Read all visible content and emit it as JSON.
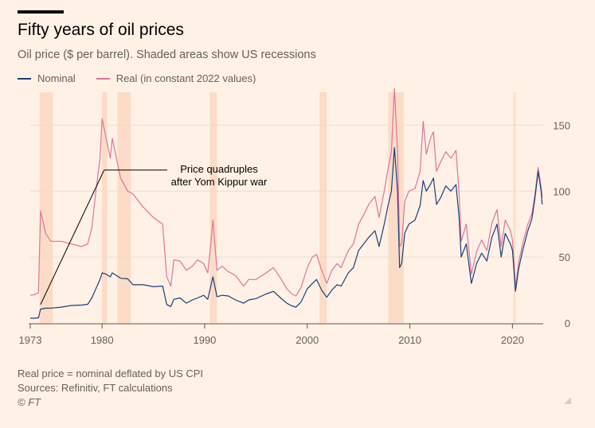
{
  "header": {
    "title": "Fifty years of oil prices",
    "subtitle": "Oil price ($ per barrel). Shaded areas show US recessions"
  },
  "colors": {
    "background": "#fff1e5",
    "nominal": "#1a3f7c",
    "real": "#e0739b",
    "recession": "#fcdcc6",
    "grid": "#e9ddd2",
    "axis": "#66605c"
  },
  "chart_data": {
    "type": "line",
    "title": "Fifty years of oil prices",
    "subtitle": "Oil price ($ per barrel). Shaded areas show US recessions",
    "xlabel": "",
    "ylabel": "",
    "xlim": [
      1973.0,
      2023.0
    ],
    "ylim": [
      0,
      175
    ],
    "x_ticks": [
      1973,
      1980,
      1990,
      2000,
      2010,
      2020
    ],
    "x_tick_labels": [
      "1973",
      "1980",
      "1990",
      "2000",
      "2010",
      "2020"
    ],
    "y_ticks": [
      0,
      50,
      100,
      150
    ],
    "y_tick_labels": [
      "0",
      "50",
      "100",
      "150"
    ],
    "grid": true,
    "legend": {
      "position": "top-left",
      "entries": [
        "Nominal",
        "Real (in constant 2022 values)"
      ]
    },
    "recessions": [
      {
        "start": 1973.9,
        "end": 1975.2
      },
      {
        "start": 1980.0,
        "end": 1980.5
      },
      {
        "start": 1981.5,
        "end": 1982.8
      },
      {
        "start": 1990.5,
        "end": 1991.2
      },
      {
        "start": 2001.2,
        "end": 2001.9
      },
      {
        "start": 2007.9,
        "end": 2009.4
      },
      {
        "start": 2020.1,
        "end": 2020.3
      }
    ],
    "annotation": {
      "text_line1": "Price quadruples",
      "text_line2": "after Yom Kippur war",
      "target_from": [
        1974.0,
        14
      ],
      "target_to": [
        1980.2,
        116
      ]
    },
    "series": [
      {
        "name": "Nominal",
        "x": [
          1973.0,
          1973.4,
          1973.8,
          1974.0,
          1974.5,
          1975.0,
          1976.0,
          1977.0,
          1978.0,
          1978.6,
          1979.0,
          1979.4,
          1979.8,
          1980.0,
          1980.4,
          1980.8,
          1981.0,
          1981.4,
          1981.8,
          1982.5,
          1983.0,
          1984.0,
          1985.0,
          1985.9,
          1986.3,
          1986.7,
          1987.0,
          1987.6,
          1988.2,
          1988.8,
          1989.3,
          1989.9,
          1990.3,
          1990.6,
          1990.8,
          1991.2,
          1991.7,
          1992.3,
          1993.0,
          1993.8,
          1994.3,
          1995.0,
          1996.0,
          1996.7,
          1997.4,
          1998.0,
          1998.5,
          1998.9,
          1999.4,
          2000.0,
          2000.5,
          2000.9,
          2001.4,
          2001.9,
          2002.4,
          2002.9,
          2003.3,
          2004.0,
          2004.5,
          2005.0,
          2005.5,
          2006.0,
          2006.6,
          2007.0,
          2007.5,
          2007.9,
          2008.2,
          2008.5,
          2008.8,
          2009.0,
          2009.2,
          2009.5,
          2009.9,
          2010.5,
          2011.0,
          2011.3,
          2011.6,
          2012.0,
          2012.3,
          2012.6,
          2013.0,
          2013.5,
          2014.0,
          2014.5,
          2014.8,
          2015.0,
          2015.5,
          2016.0,
          2016.5,
          2017.0,
          2017.5,
          2018.0,
          2018.5,
          2018.9,
          2019.3,
          2019.8,
          2020.0,
          2020.3,
          2020.6,
          2021.0,
          2021.5,
          2021.9,
          2022.2,
          2022.5,
          2022.8,
          2022.9
        ],
        "values": [
          3.6,
          3.6,
          3.9,
          10.5,
          11.2,
          11.3,
          12.0,
          13.3,
          13.6,
          14.2,
          19.0,
          26.0,
          33.0,
          38.0,
          37.0,
          35.0,
          38.0,
          36.0,
          34.0,
          33.5,
          29.0,
          29.0,
          27.5,
          28.0,
          14.0,
          12.5,
          18.0,
          19.0,
          15.0,
          17.5,
          19.0,
          21.0,
          18.0,
          28.0,
          35.0,
          20.0,
          21.0,
          20.5,
          17.5,
          15.0,
          17.5,
          18.5,
          22.0,
          24.0,
          19.0,
          15.0,
          13.0,
          12.0,
          16.0,
          26.0,
          30.0,
          33.0,
          25.0,
          19.5,
          25.0,
          29.0,
          28.0,
          38.0,
          42.0,
          55.0,
          60.0,
          65.0,
          70.0,
          58.0,
          75.0,
          90.0,
          100.0,
          133.0,
          100.0,
          42.0,
          45.0,
          68.0,
          75.0,
          78.0,
          89.0,
          108.0,
          100.0,
          105.0,
          110.0,
          90.0,
          95.0,
          104.0,
          100.0,
          105.0,
          80.0,
          50.0,
          60.0,
          30.0,
          45.0,
          53.0,
          47.0,
          65.0,
          75.0,
          50.0,
          68.0,
          60.0,
          55.0,
          24.0,
          41.0,
          55.0,
          70.0,
          79.0,
          95.0,
          115.0,
          100.0,
          90.0
        ]
      },
      {
        "name": "Real (in constant 2022 values)",
        "x": [
          1973.0,
          1973.4,
          1973.8,
          1974.0,
          1974.5,
          1975.0,
          1976.0,
          1977.0,
          1978.0,
          1978.6,
          1979.0,
          1979.4,
          1979.8,
          1980.0,
          1980.4,
          1980.8,
          1981.0,
          1981.4,
          1981.8,
          1982.5,
          1983.0,
          1984.0,
          1985.0,
          1985.9,
          1986.3,
          1986.7,
          1987.0,
          1987.6,
          1988.2,
          1988.8,
          1989.3,
          1989.9,
          1990.3,
          1990.6,
          1990.8,
          1991.2,
          1991.7,
          1992.3,
          1993.0,
          1993.8,
          1994.3,
          1995.0,
          1996.0,
          1996.7,
          1997.4,
          1998.0,
          1998.5,
          1998.9,
          1999.4,
          2000.0,
          2000.5,
          2000.9,
          2001.4,
          2001.9,
          2002.4,
          2002.9,
          2003.3,
          2004.0,
          2004.5,
          2005.0,
          2005.5,
          2006.0,
          2006.6,
          2007.0,
          2007.5,
          2007.9,
          2008.2,
          2008.5,
          2008.8,
          2009.0,
          2009.2,
          2009.5,
          2009.9,
          2010.5,
          2011.0,
          2011.3,
          2011.6,
          2012.0,
          2012.3,
          2012.6,
          2013.0,
          2013.5,
          2014.0,
          2014.5,
          2014.8,
          2015.0,
          2015.5,
          2016.0,
          2016.5,
          2017.0,
          2017.5,
          2018.0,
          2018.5,
          2018.9,
          2019.3,
          2019.8,
          2020.0,
          2020.3,
          2020.6,
          2021.0,
          2021.5,
          2021.9,
          2022.2,
          2022.5,
          2022.8,
          2022.9
        ],
        "values": [
          21.0,
          21.5,
          23.0,
          85.0,
          68.0,
          62.0,
          62.0,
          60.0,
          58.0,
          60.0,
          72.0,
          100.0,
          125.0,
          155.0,
          140.0,
          125.0,
          140.0,
          125.0,
          110.0,
          100.0,
          98.0,
          88.0,
          80.0,
          75.0,
          35.0,
          28.0,
          48.0,
          47.0,
          40.0,
          43.0,
          48.0,
          45.0,
          38.0,
          60.0,
          78.0,
          40.0,
          43.0,
          39.0,
          36.0,
          28.0,
          33.0,
          33.0,
          38.0,
          42.0,
          34.0,
          26.0,
          22.0,
          20.5,
          27.0,
          42.0,
          50.0,
          52.0,
          40.0,
          30.0,
          40.0,
          45.0,
          42.0,
          55.0,
          60.0,
          75.0,
          82.0,
          90.0,
          96.0,
          80.0,
          100.0,
          118.0,
          130.0,
          178.0,
          130.0,
          58.0,
          60.0,
          92.0,
          100.0,
          102.0,
          115.0,
          153.0,
          128.0,
          140.0,
          145.0,
          115.0,
          122.0,
          130.0,
          125.0,
          131.0,
          98.0,
          62.0,
          75.0,
          37.0,
          54.0,
          63.0,
          55.0,
          76.0,
          86.0,
          58.0,
          78.0,
          70.0,
          63.0,
          27.0,
          46.0,
          60.0,
          75.0,
          83.0,
          98.0,
          118.0,
          103.0,
          95.0
        ]
      }
    ]
  },
  "footer": {
    "note": "Real price = nominal deflated by US CPI",
    "sources": "Sources: Refinitiv, FT calculations",
    "credit": "© FT"
  }
}
